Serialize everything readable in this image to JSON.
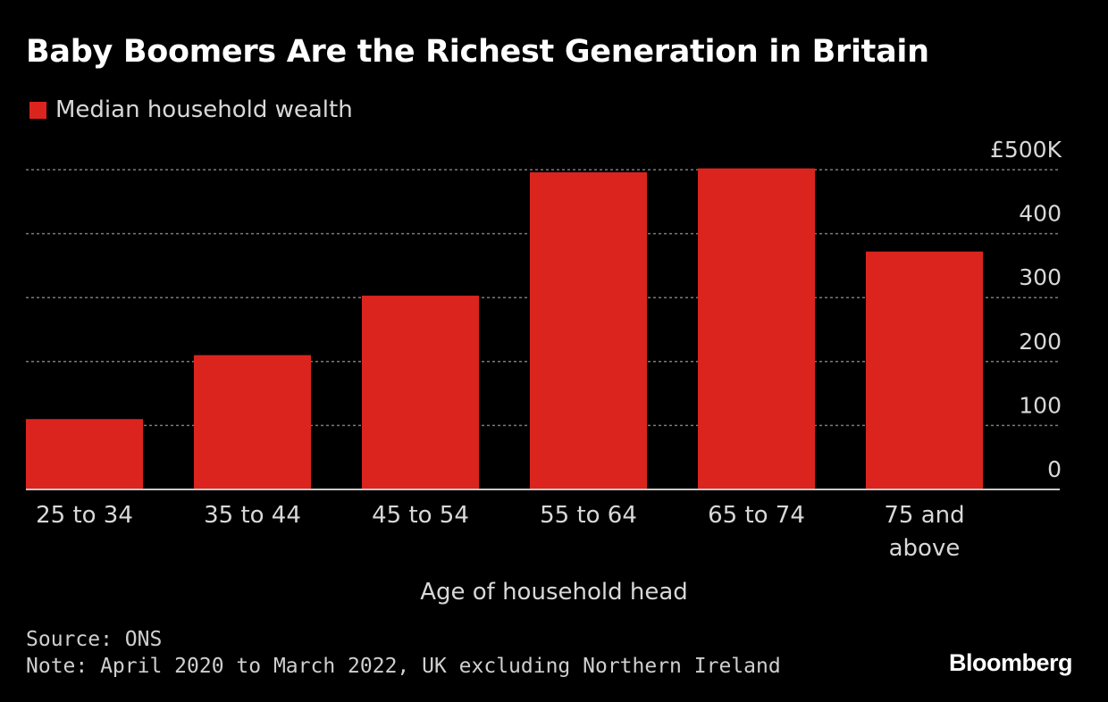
{
  "colors": {
    "background": "#000000",
    "bar": "#dc241f",
    "grid": "#7a7a7a",
    "axis": "#c8c8c8",
    "text": "#ffffff",
    "muted_text": "#d8d8d8"
  },
  "chart_data": {
    "type": "bar",
    "title": "Baby Boomers Are the Richest Generation in Britain",
    "xlabel": "Age of household head",
    "ylabel": "",
    "categories": [
      "25 to 34",
      "35 to 44",
      "45 to 54",
      "55 to 64",
      "65 to 74",
      "75 and above"
    ],
    "category_lines": [
      [
        "25 to 34"
      ],
      [
        "35 to 44"
      ],
      [
        "45 to 54"
      ],
      [
        "55 to 64"
      ],
      [
        "65 to 74"
      ],
      [
        "75 and",
        "above"
      ]
    ],
    "series": [
      {
        "name": "Median household wealth",
        "values": [
          110,
          210,
          303,
          496,
          502,
          372
        ]
      }
    ],
    "ylim": [
      0,
      500
    ],
    "yticks": [
      0,
      100,
      200,
      300,
      400,
      500
    ],
    "ytick_labels": [
      "0",
      "100",
      "200",
      "300",
      "400",
      "£500K"
    ],
    "grid": true,
    "legend_position": "top-left",
    "y_axis_side": "right"
  },
  "footer": {
    "source": "Source: ONS",
    "note": "Note: April 2020 to March 2022, UK excluding Northern Ireland"
  },
  "brand": "Bloomberg"
}
